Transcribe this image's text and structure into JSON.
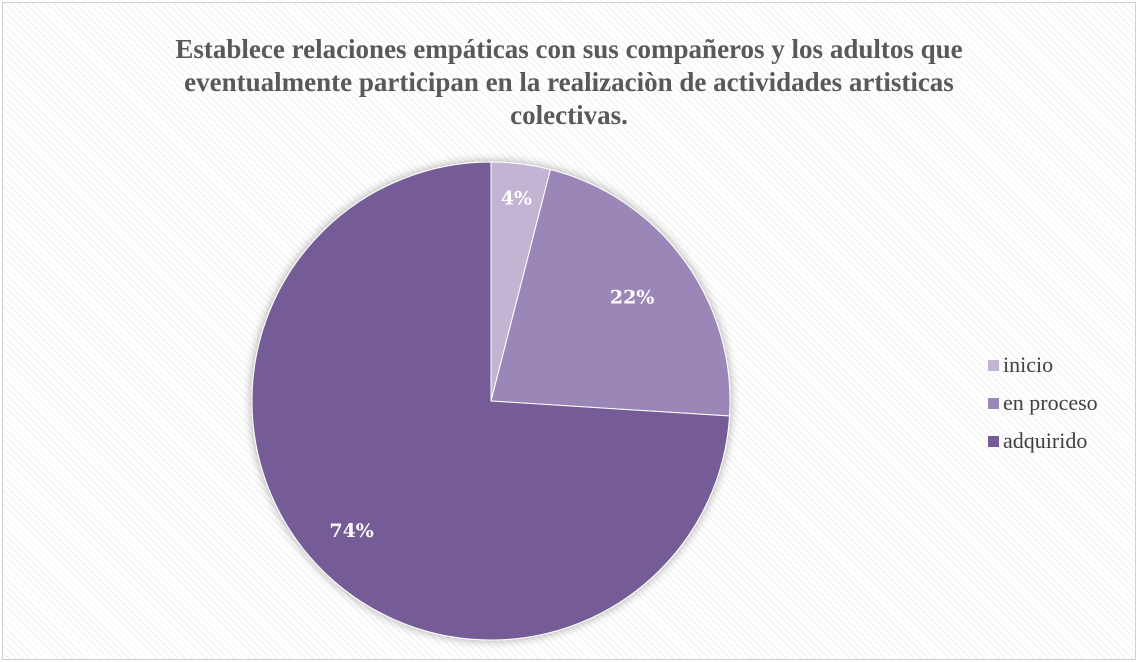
{
  "chart_data": {
    "type": "pie",
    "title_lines": [
      "Establece relaciones empáticas con sus compañeros y los adultos que",
      "eventualmente  participan en la realizaciòn de actividades artisticas",
      "colectivas."
    ],
    "categories": [
      "inicio",
      "en proceso",
      "adquirido"
    ],
    "values": [
      4,
      22,
      74
    ],
    "data_labels": [
      "4%",
      "22%",
      "74%"
    ],
    "colors": [
      "#c3b4d3",
      "#9b87b7",
      "#765c96"
    ],
    "legend_position": "right"
  }
}
